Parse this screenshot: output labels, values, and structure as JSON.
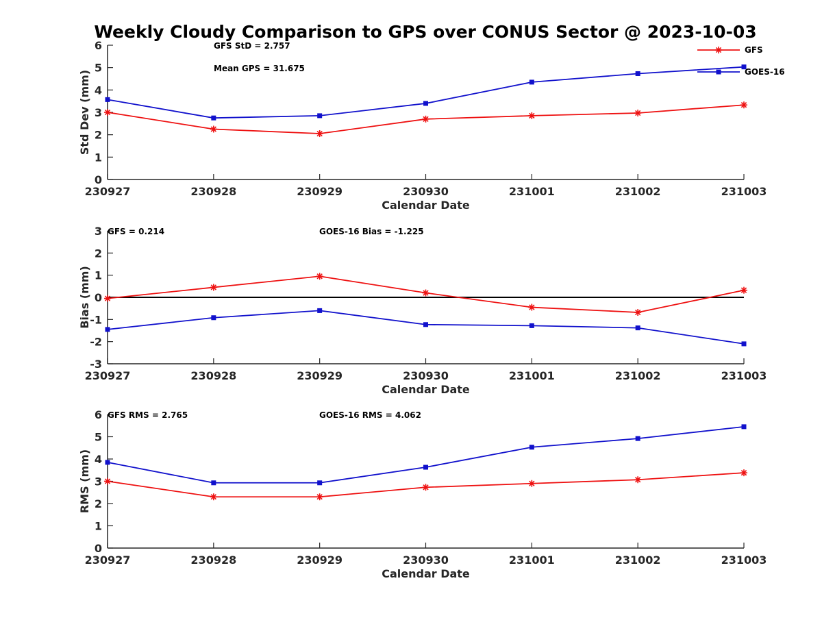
{
  "title": "Weekly Cloudy Comparison to GPS over CONUS Sector @ 2023-10-03",
  "legend": {
    "placement": "top-right",
    "entries": [
      {
        "label": "GFS",
        "color": "#ee1111",
        "marker": "asterisk"
      },
      {
        "label": "GOES-16",
        "color": "#1111cc",
        "marker": "square"
      }
    ]
  },
  "chart_data": [
    {
      "type": "line",
      "ylabel": "Std Dev (mm)",
      "xlabel": "Calendar Date",
      "categories": [
        "230927",
        "230928",
        "230929",
        "230930",
        "231001",
        "231002",
        "231003"
      ],
      "ylim": [
        0,
        6
      ],
      "yticks": [
        "0",
        "1",
        "2",
        "3",
        "4",
        "5",
        "6"
      ],
      "grid": false,
      "zero_line": false,
      "annotations": [
        "GFS StD = 2.757",
        "Mean GPS = 31.675"
      ],
      "series": [
        {
          "name": "GFS",
          "color": "#ee1111",
          "marker": "asterisk",
          "values": [
            3.0,
            2.25,
            2.05,
            2.7,
            2.85,
            2.97,
            3.33
          ]
        },
        {
          "name": "GOES-16",
          "color": "#1111cc",
          "marker": "square",
          "values": [
            3.57,
            2.75,
            2.85,
            3.4,
            4.35,
            4.73,
            5.03
          ]
        }
      ]
    },
    {
      "type": "line",
      "ylabel": "Bias (mm)",
      "xlabel": "Calendar Date",
      "categories": [
        "230927",
        "230928",
        "230929",
        "230930",
        "231001",
        "231002",
        "231003"
      ],
      "ylim": [
        -3,
        3
      ],
      "yticks": [
        "-3",
        "-2",
        "-1",
        "0",
        "1",
        "2",
        "3"
      ],
      "grid": false,
      "zero_line": true,
      "annotations": [
        "GFS = 0.214",
        "GOES-16 Bias  = -1.225"
      ],
      "series": [
        {
          "name": "GFS",
          "color": "#ee1111",
          "marker": "asterisk",
          "values": [
            -0.05,
            0.45,
            0.95,
            0.2,
            -0.45,
            -0.68,
            0.32
          ]
        },
        {
          "name": "GOES-16",
          "color": "#1111cc",
          "marker": "square",
          "values": [
            -1.45,
            -0.92,
            -0.6,
            -1.23,
            -1.28,
            -1.38,
            -2.1
          ]
        }
      ]
    },
    {
      "type": "line",
      "ylabel": "RMS (mm)",
      "xlabel": "Calendar Date",
      "categories": [
        "230927",
        "230928",
        "230929",
        "230930",
        "231001",
        "231002",
        "231003"
      ],
      "ylim": [
        0,
        6
      ],
      "yticks": [
        "0",
        "1",
        "2",
        "3",
        "4",
        "5",
        "6"
      ],
      "grid": false,
      "zero_line": false,
      "annotations": [
        "GFS RMS = 2.765",
        "GOES-16 RMS = 4.062"
      ],
      "series": [
        {
          "name": "GFS",
          "color": "#ee1111",
          "marker": "asterisk",
          "values": [
            3.0,
            2.3,
            2.3,
            2.73,
            2.9,
            3.07,
            3.38
          ]
        },
        {
          "name": "GOES-16",
          "color": "#1111cc",
          "marker": "square",
          "values": [
            3.85,
            2.93,
            2.93,
            3.63,
            4.53,
            4.92,
            5.45
          ]
        }
      ]
    }
  ]
}
